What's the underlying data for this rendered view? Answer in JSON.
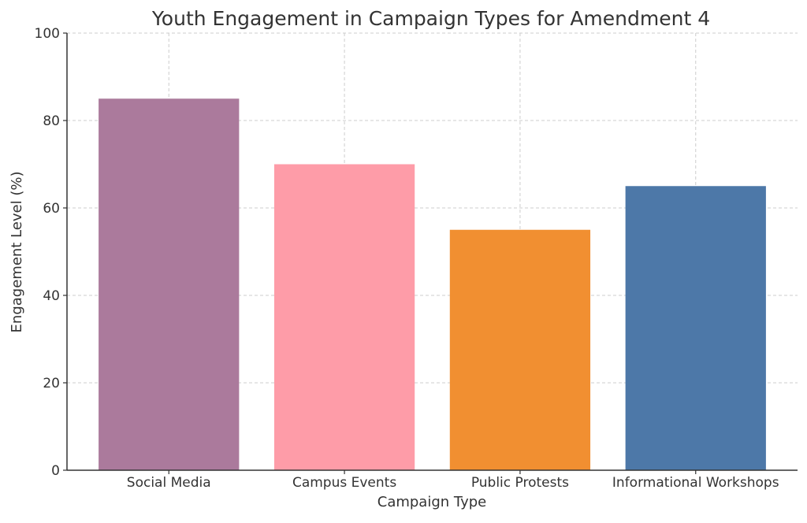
{
  "chart_data": {
    "type": "bar",
    "title": "Youth Engagement in Campaign Types for Amendment 4",
    "xlabel": "Campaign Type",
    "ylabel": "Engagement Level (%)",
    "categories": [
      "Social Media",
      "Campus Events",
      "Public Protests",
      "Informational Workshops"
    ],
    "values": [
      85,
      70,
      55,
      65
    ],
    "colors": [
      "#ab7a9c",
      "#fe9ca8",
      "#f18f31",
      "#4d78a8"
    ],
    "ylim": [
      0,
      100
    ],
    "yticks": [
      0,
      20,
      40,
      60,
      80,
      100
    ],
    "grid": true,
    "legend": "none"
  }
}
